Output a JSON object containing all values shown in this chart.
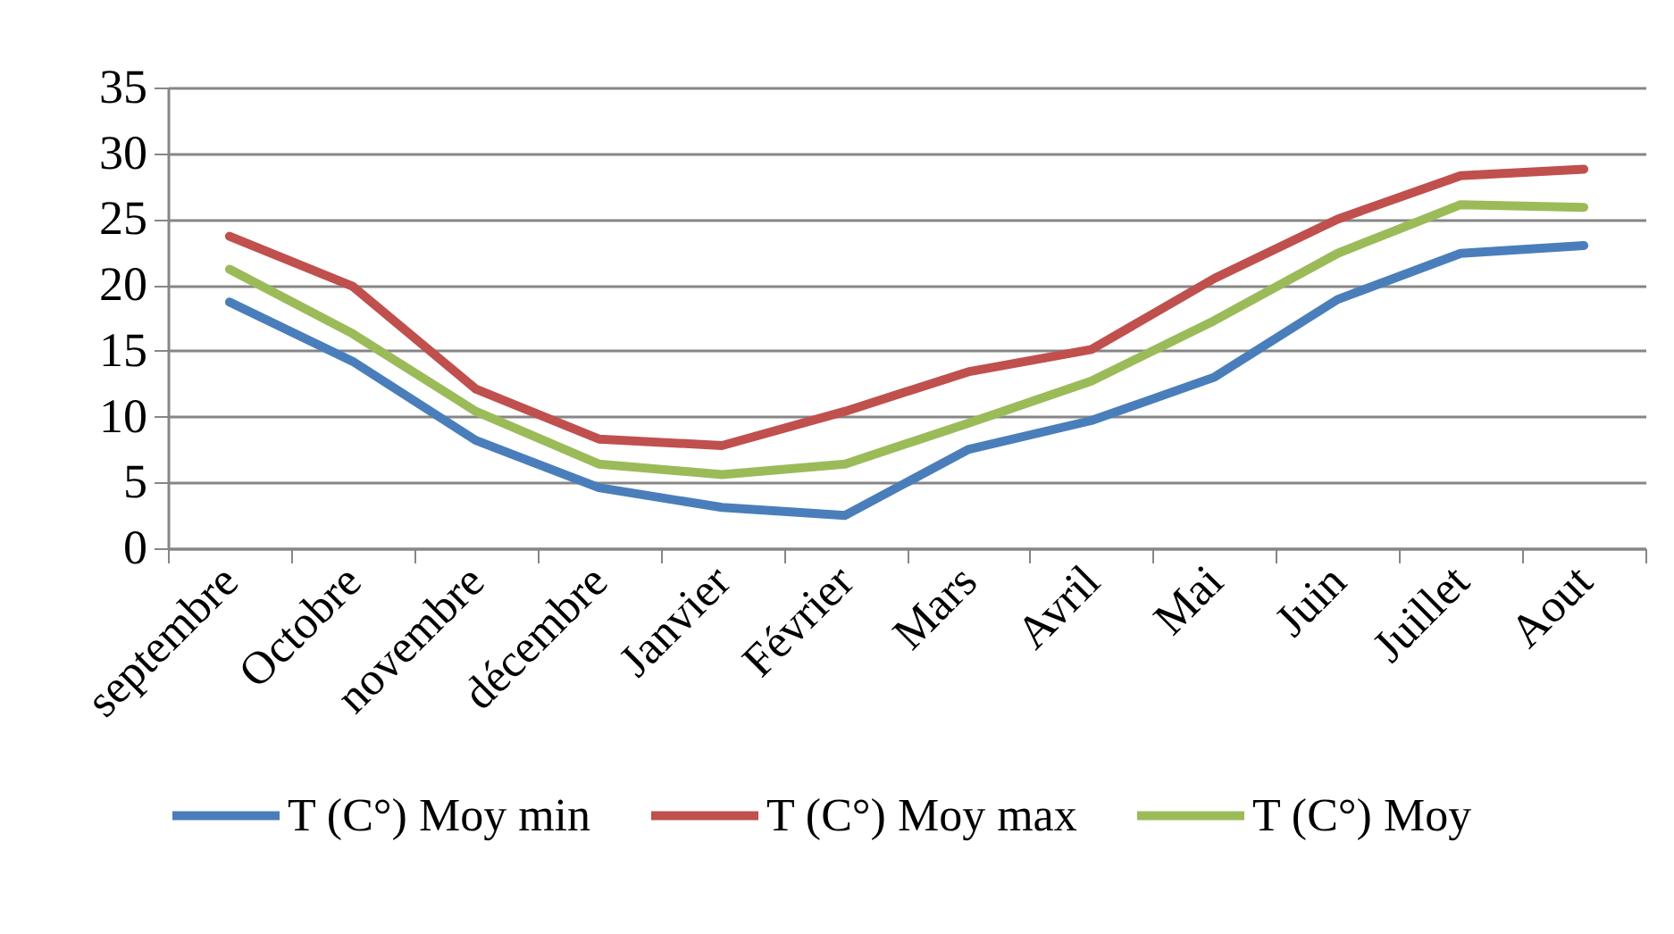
{
  "chart_data": {
    "type": "line",
    "categories": [
      "septembre",
      "Octobre",
      "novembre",
      "décembre",
      "Janvier",
      "Février",
      "Mars",
      "Avril",
      "Mai",
      "Juin",
      "Juillet",
      "Aout"
    ],
    "series": [
      {
        "name": "T (C°) Moy min",
        "color": "#4a7ebb",
        "values": [
          18.7,
          14.2,
          8.2,
          4.6,
          3.1,
          2.5,
          7.5,
          9.7,
          13.0,
          18.9,
          22.4,
          23.0
        ]
      },
      {
        "name": "T (C°) Moy max",
        "color": "#c0504d",
        "values": [
          23.7,
          19.9,
          12.1,
          8.3,
          7.8,
          10.4,
          13.4,
          15.1,
          20.5,
          25.0,
          28.3,
          28.8
        ]
      },
      {
        "name": "T (C°) Moy",
        "color": "#9bbb59",
        "values": [
          21.2,
          16.3,
          10.4,
          6.4,
          5.6,
          6.4,
          9.5,
          12.7,
          17.3,
          22.4,
          26.1,
          25.9
        ]
      }
    ],
    "ylim": [
      0,
      35
    ],
    "yticks": [
      0,
      5,
      10,
      15,
      20,
      25,
      30,
      35
    ],
    "grid": "y",
    "legend": "bottom",
    "marker": "none",
    "line_style": "solid"
  }
}
